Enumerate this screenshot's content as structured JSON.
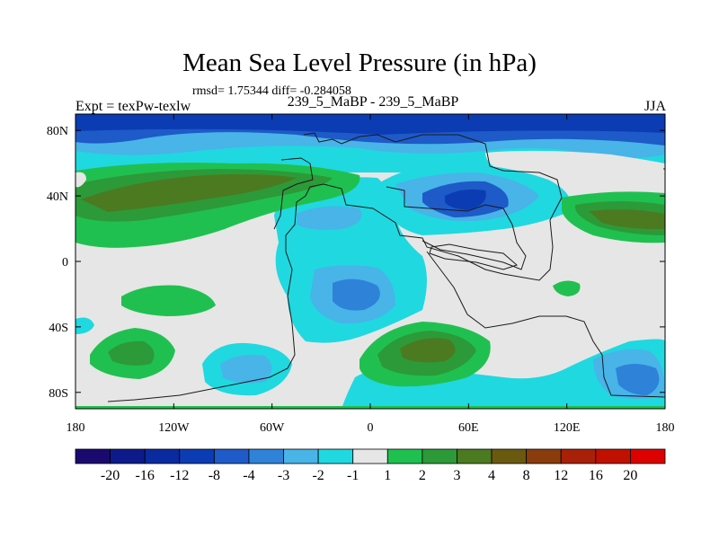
{
  "chart_data": {
    "type": "heatmap",
    "title": "Mean Sea Level Pressure (in hPa)",
    "stats_text": "rmsd= 1.75344 diff= -0.284058",
    "left_label": "Expt = texPw-texlw",
    "center_label": "239_5_MaBP - 239_5_MaBP",
    "right_label": "JJA",
    "x": {
      "range": [
        -180,
        180
      ],
      "ticks": [
        -180,
        -120,
        -60,
        0,
        60,
        120,
        180
      ],
      "tick_labels": [
        "180",
        "120W",
        "60W",
        "0",
        "60E",
        "120E",
        "180"
      ]
    },
    "y": {
      "range": [
        -90,
        90
      ],
      "ticks": [
        80,
        40,
        0,
        -40,
        -80
      ],
      "tick_labels": [
        "80N",
        "40N",
        "0",
        "40S",
        "80S"
      ]
    },
    "colorbar": {
      "labels": [
        "-20",
        "-16",
        "-12",
        "-8",
        "-4",
        "-3",
        "-2",
        "-1",
        "1",
        "2",
        "3",
        "4",
        "8",
        "12",
        "16",
        "20"
      ],
      "colors": [
        "#1a0a70",
        "#0d1a8c",
        "#0a2aa0",
        "#0c3cb4",
        "#1e5ac8",
        "#2e82d8",
        "#48b4e8",
        "#20d8e0",
        "#e6e6e6",
        "#20c050",
        "#2c9a38",
        "#4c7a20",
        "#6a5a10",
        "#8a3c0c",
        "#a82008",
        "#c01000",
        "#dc0000"
      ]
    },
    "regions": [
      {
        "level": "<=-8",
        "lon": [
          -180,
          180
        ],
        "lat": [
          76,
          90
        ],
        "desc": "arctic low band"
      },
      {
        "level": "-4 to -2",
        "lon": [
          -180,
          180
        ],
        "lat": [
          60,
          76
        ],
        "desc": "high-latitude low band"
      },
      {
        "level": "-2 to -1",
        "lon": [
          -65,
          0
        ],
        "lat": [
          -50,
          30
        ],
        "desc": "tropical Atlantic low"
      },
      {
        "level": "-3 to -4",
        "lon": [
          -35,
          -10
        ],
        "lat": [
          -40,
          -10
        ],
        "desc": "south Atlantic low core"
      },
      {
        "level": "-4 to -8",
        "lon": [
          30,
          100
        ],
        "lat": [
          20,
          55
        ],
        "desc": "asian low"
      },
      {
        "level": "-2 to -4",
        "lon": [
          -110,
          -50
        ],
        "lat": [
          -80,
          -50
        ],
        "desc": "southern ocean low"
      },
      {
        "level": "-2 to -4",
        "lon": [
          140,
          180
        ],
        "lat": [
          -85,
          -45
        ],
        "desc": "southern ocean low east"
      },
      {
        "level": "1 to 4",
        "lon": [
          -180,
          -100
        ],
        "lat": [
          20,
          60
        ],
        "desc": "north pacific high"
      },
      {
        "level": "1 to 4",
        "lon": [
          5,
          85
        ],
        "lat": [
          -75,
          -35
        ],
        "desc": "south indian ocean high"
      },
      {
        "level": "1 to 4",
        "lon": [
          125,
          180
        ],
        "lat": [
          15,
          45
        ],
        "desc": "west pacific high"
      },
      {
        "level": "1 to 3",
        "lon": [
          -175,
          -120
        ],
        "lat": [
          -75,
          -40
        ],
        "desc": "south pacific high"
      },
      {
        "level": "1 to 2",
        "lon": [
          -150,
          -110
        ],
        "lat": [
          -20,
          -5
        ],
        "desc": "tropical pacific high"
      }
    ]
  }
}
